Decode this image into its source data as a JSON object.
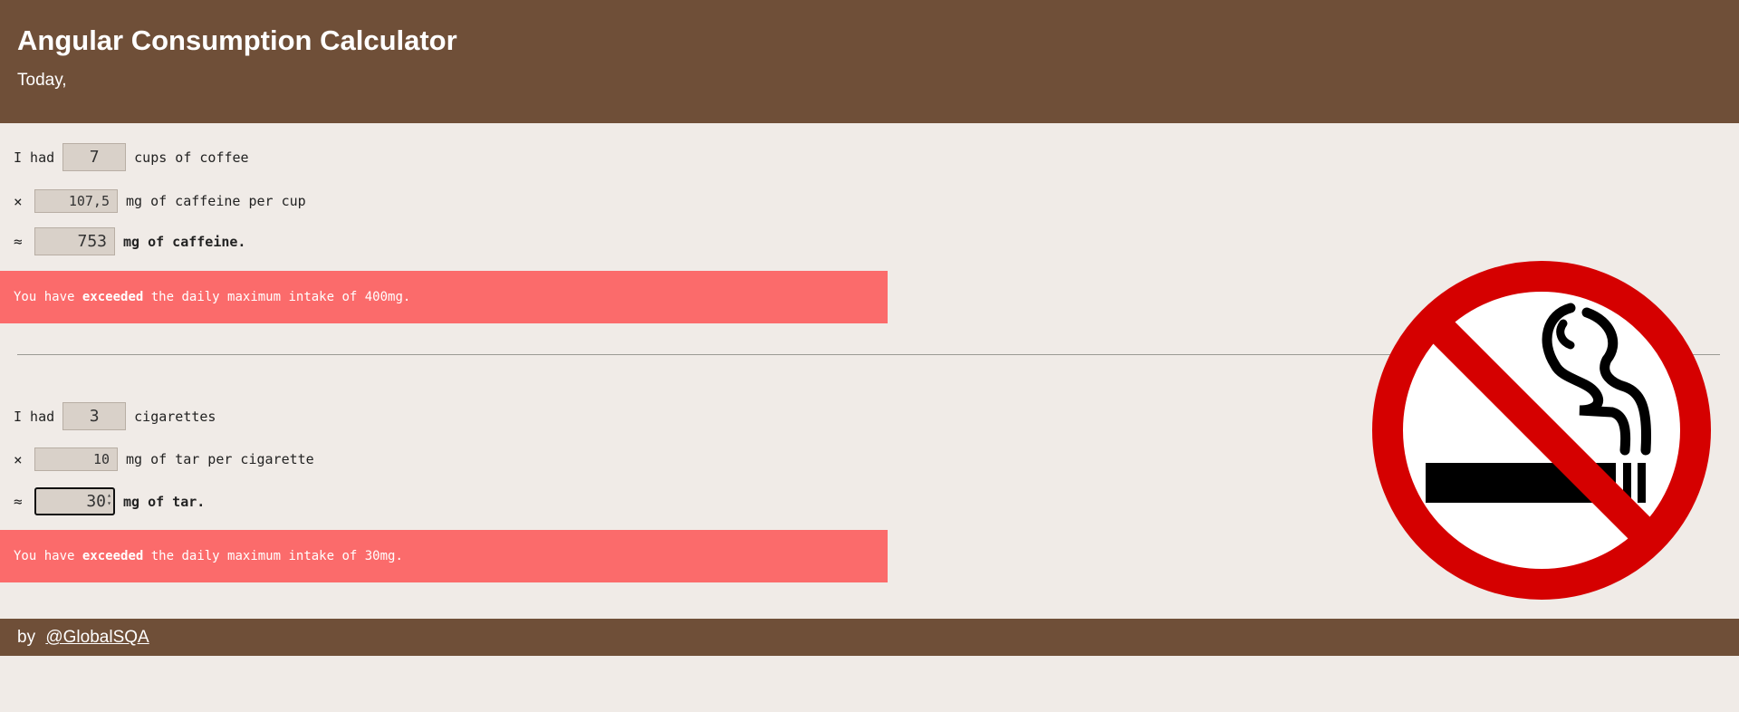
{
  "header": {
    "title": "Angular Consumption Calculator",
    "subtitle": "Today,"
  },
  "coffee": {
    "prefix": "I had",
    "cups": "7",
    "cups_suffix": "cups of coffee",
    "times_symbol": "×",
    "caffeine_per_cup": "107,5",
    "caffeine_suffix": "mg of caffeine per cup",
    "approx_symbol": "≈",
    "total": "753",
    "total_suffix": "mg of caffeine.",
    "alert_prefix": "You have",
    "alert_bold": "exceeded",
    "alert_suffix": "the daily maximum intake of 400mg."
  },
  "tobacco": {
    "prefix": "I had",
    "count": "3",
    "count_suffix": "cigarettes",
    "times_symbol": "×",
    "tar_per_cigarette": "10",
    "tar_suffix": "mg of tar per cigarette",
    "approx_symbol": "≈",
    "total": "30",
    "total_suffix": "mg of tar.",
    "alert_prefix": "You have",
    "alert_bold": "exceeded",
    "alert_suffix": "the daily maximum intake of 30mg."
  },
  "image": {
    "icon": "no-smoking-icon",
    "ring_color": "#d50000"
  },
  "footer": {
    "by": "by",
    "link": "@GlobalSQA"
  },
  "colors": {
    "header_bg": "#6f4f38",
    "page_bg": "#f0ebe7",
    "alert_bg": "#fb6b6b",
    "input_bg": "#d9d1c9"
  }
}
